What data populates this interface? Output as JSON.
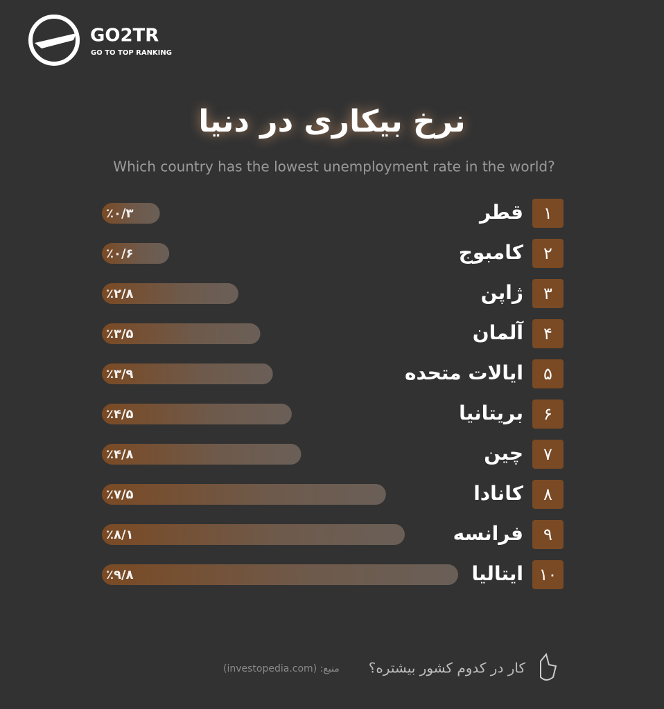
{
  "logo": {
    "name": "GO2TR",
    "tagline": "GO TO TOP RANKING"
  },
  "chart_data": {
    "type": "bar",
    "orientation": "horizontal",
    "title": "نرخ بیکاری در دنیا",
    "subtitle": "Which country has the lowest unemployment rate in the world?",
    "ranks": [
      "۱",
      "۲",
      "۳",
      "۴",
      "۵",
      "۶",
      "۷",
      "۸",
      "۹",
      "۱۰"
    ],
    "categories": [
      "قطر",
      "کامبوج",
      "ژاپن",
      "آلمان",
      "ایالات متحده",
      "بریتانیا",
      "چین",
      "کانادا",
      "فرانسه",
      "ایتالیا"
    ],
    "values": [
      0.3,
      0.6,
      2.8,
      3.5,
      3.9,
      4.5,
      4.8,
      7.5,
      8.1,
      9.8
    ],
    "value_labels": [
      "٪۰/۳",
      "٪۰/۶",
      "٪۲/۸",
      "٪۳/۵",
      "٪۳/۹",
      "٪۴/۵",
      "٪۴/۸",
      "٪۷/۵",
      "٪۸/۱",
      "٪۹/۸"
    ],
    "color": "#7a4a24"
  },
  "footer": {
    "source": "منبع: (investopedia.com)",
    "question": "کار در کدوم کشور بیشتره؟"
  }
}
